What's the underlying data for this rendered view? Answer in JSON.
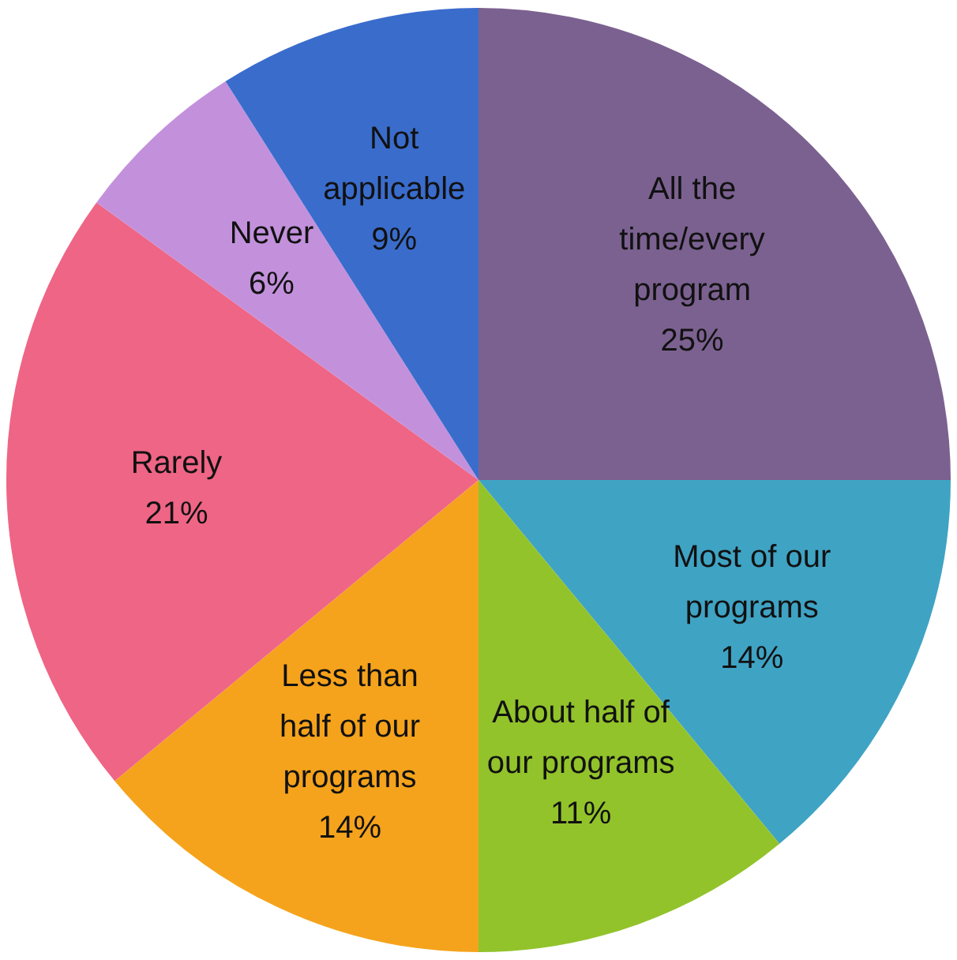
{
  "chart_data": {
    "type": "pie",
    "categories": [
      "All the time/every program",
      "Most of our programs",
      "About half of our programs",
      "Less than half of our programs",
      "Rarely",
      "Never",
      "Not applicable"
    ],
    "values": [
      25,
      14,
      11,
      14,
      21,
      6,
      9
    ],
    "value_labels": [
      "25%",
      "14%",
      "11%",
      "14%",
      "21%",
      "6%",
      "9%"
    ],
    "colors": [
      "#7b6190",
      "#3fa3c4",
      "#92c32b",
      "#f5a31c",
      "#ef6585",
      "#c391dc",
      "#3a6ccc"
    ],
    "legend": false
  }
}
